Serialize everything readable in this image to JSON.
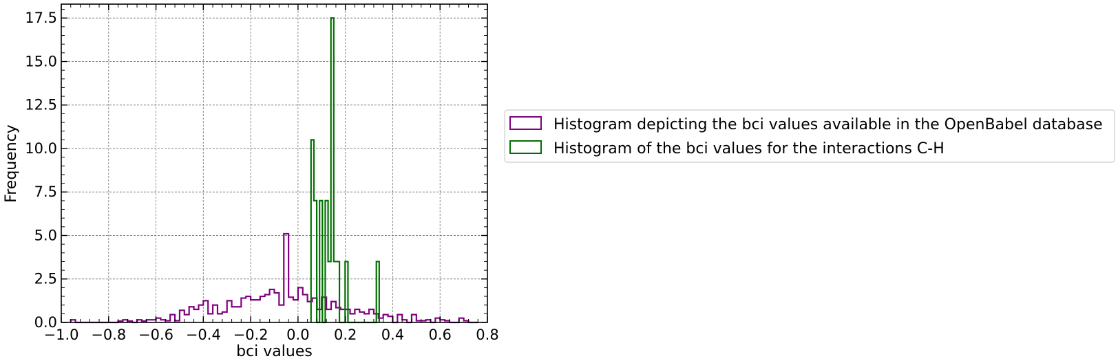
{
  "chart_data": {
    "type": "histogram",
    "xlabel": "bci values",
    "ylabel": "Frequency",
    "xlim": [
      -1.0,
      0.8
    ],
    "ylim": [
      0,
      18.3
    ],
    "xticks": [
      -1.0,
      -0.8,
      -0.6,
      -0.4,
      -0.2,
      0.0,
      0.2,
      0.4,
      0.6,
      0.8
    ],
    "xtick_labels": [
      "−1.0",
      "−0.8",
      "−0.6",
      "−0.4",
      "−0.2",
      "0.0",
      "0.2",
      "0.4",
      "0.6",
      "0.8"
    ],
    "yticks": [
      0.0,
      2.5,
      5.0,
      7.5,
      10.0,
      12.5,
      15.0,
      17.5
    ],
    "ytick_labels": [
      "0.0",
      "2.5",
      "5.0",
      "7.5",
      "10.0",
      "12.5",
      "15.0",
      "17.5"
    ],
    "grid": true,
    "legend_position": "right-outside",
    "series": [
      {
        "name": "Histogram depicting the bci values available in the OpenBabel database",
        "color": "#800080",
        "edges": [
          -0.96,
          -0.94,
          -0.92,
          -0.9,
          -0.88,
          -0.86,
          -0.84,
          -0.82,
          -0.8,
          -0.78,
          -0.76,
          -0.74,
          -0.72,
          -0.7,
          -0.68,
          -0.66,
          -0.64,
          -0.62,
          -0.6,
          -0.58,
          -0.56,
          -0.54,
          -0.52,
          -0.5,
          -0.48,
          -0.46,
          -0.44,
          -0.42,
          -0.4,
          -0.38,
          -0.36,
          -0.34,
          -0.32,
          -0.3,
          -0.28,
          -0.26,
          -0.24,
          -0.22,
          -0.2,
          -0.18,
          -0.16,
          -0.14,
          -0.12,
          -0.1,
          -0.08,
          -0.06,
          -0.04,
          -0.02,
          0.0,
          0.02,
          0.04,
          0.06,
          0.08,
          0.1,
          0.12,
          0.14,
          0.16,
          0.18,
          0.2,
          0.22,
          0.24,
          0.26,
          0.28,
          0.3,
          0.32,
          0.34,
          0.36,
          0.38,
          0.4,
          0.42,
          0.44,
          0.46,
          0.48,
          0.5,
          0.52,
          0.54,
          0.56,
          0.58,
          0.6,
          0.62,
          0.64,
          0.66,
          0.68,
          0.7,
          0.72,
          0.74,
          0.76
        ],
        "values": [
          0.15,
          0,
          0,
          0,
          0,
          0,
          0,
          0,
          0,
          0,
          0.08,
          0.15,
          0.08,
          0,
          0.15,
          0.08,
          0.15,
          0.15,
          0.25,
          0.15,
          0.1,
          0.45,
          0.1,
          0.7,
          0.45,
          0.9,
          0.75,
          1.0,
          1.25,
          0.5,
          1.0,
          0.5,
          0.6,
          1.25,
          0.9,
          0.9,
          1.4,
          1.5,
          1.3,
          1.3,
          1.5,
          1.6,
          1.9,
          1.7,
          1.0,
          5.1,
          1.45,
          1.3,
          2.0,
          1.6,
          1.2,
          1.4,
          0.75,
          1.45,
          0.75,
          1.2,
          0.85,
          0.75,
          0.75,
          0.5,
          0.75,
          0.6,
          0.5,
          0.75,
          0.5,
          0.25,
          0.45,
          0.35,
          0.0,
          0.45,
          0.15,
          0.0,
          0.45,
          0.1,
          0.1,
          0.15,
          0.0,
          0.25,
          0.15,
          0.1,
          0.0,
          0.0,
          0.25,
          0.1,
          0.0,
          0.0
        ]
      },
      {
        "name": "Histogram of the bci values for the interactions C-H",
        "color": "#007000",
        "edges": [
          0.055,
          0.067,
          0.079,
          0.091,
          0.103,
          0.115,
          0.127,
          0.139,
          0.151,
          0.163,
          0.175,
          0.187,
          0.199,
          0.211,
          0.223,
          0.235,
          0.247,
          0.259,
          0.271,
          0.283,
          0.295,
          0.307,
          0.319,
          0.331,
          0.343
        ],
        "values": [
          10.5,
          7.0,
          0,
          7.0,
          0,
          7.0,
          3.5,
          17.5,
          3.5,
          3.5,
          0,
          0,
          3.5,
          0,
          0,
          0,
          0,
          0,
          0,
          0,
          0,
          0,
          0,
          3.5
        ]
      }
    ]
  }
}
